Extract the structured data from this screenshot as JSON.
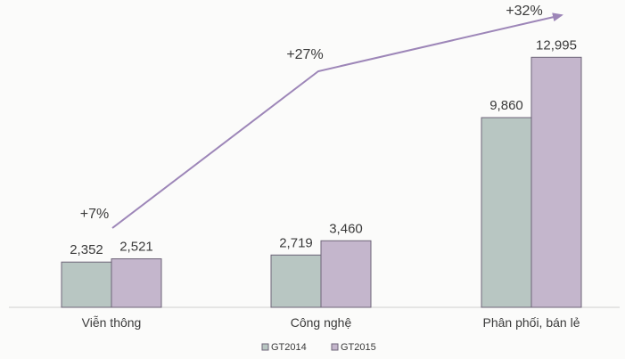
{
  "chart_data": {
    "type": "bar",
    "categories": [
      "Viễn thông",
      "Công nghệ",
      "Phân phối, bán lẻ"
    ],
    "series": [
      {
        "name": "GT2014",
        "values": [
          2352,
          2719,
          9860
        ],
        "labels": [
          "2,352",
          "2,719",
          "9,860"
        ]
      },
      {
        "name": "GT2015",
        "values": [
          2521,
          3460,
          12995
        ],
        "labels": [
          "2,521",
          "3,460",
          "12,995"
        ]
      }
    ],
    "growth": [
      "+7%",
      "+27%",
      "+32%"
    ],
    "ylim": [
      0,
      14000
    ],
    "grid": false,
    "legend": "bottom-center",
    "title": "",
    "xlabel": "",
    "ylabel": ""
  },
  "colors": {
    "bar_2014": "#b8c6c2",
    "bar_2015": "#c4b6cc",
    "bar_stroke": "#6e6478",
    "arrow": "#9d86b8",
    "text": "#3a3a3a",
    "baseline": "#cfcfcf"
  }
}
